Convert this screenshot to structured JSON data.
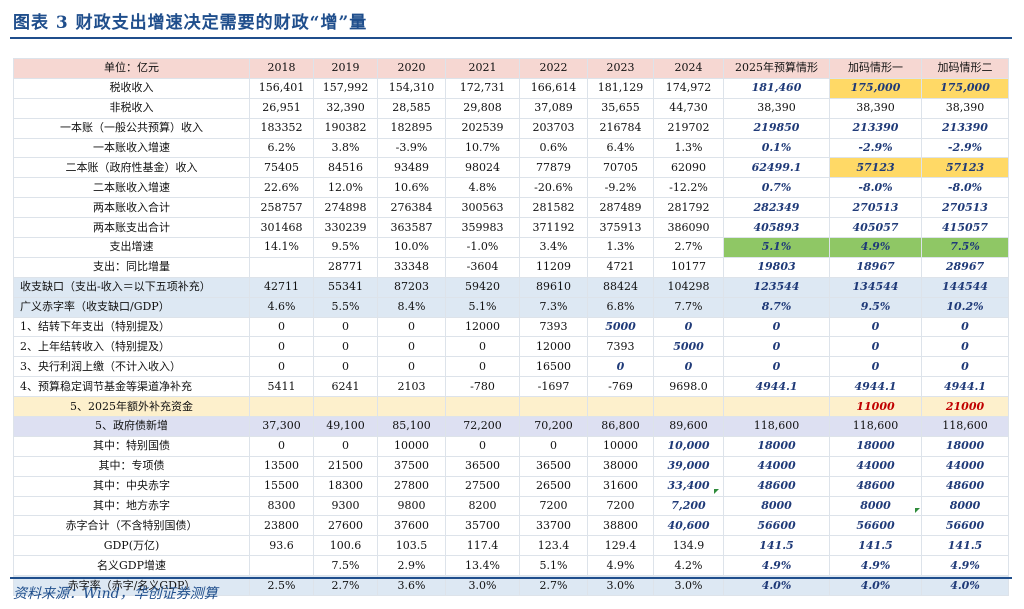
{
  "title": "图表 3   财政支出增速决定需要的财政“增”量",
  "source": "资料来源：Wind，华创证券测算",
  "table": {
    "headers": [
      "单位：亿元",
      "2018",
      "2019",
      "2020",
      "2021",
      "2022",
      "2023",
      "2024",
      "2025年预算情形",
      "加码情形一",
      "加码情形二"
    ],
    "rows": [
      {
        "label": "税收收入",
        "cells": [
          "156,401",
          "157,992",
          "154,310",
          "172,731",
          "166,614",
          "181,129",
          "174,972",
          "181,460",
          "175,000",
          "175,000"
        ]
      },
      {
        "label": "非税收入",
        "cells": [
          "26,951",
          "32,390",
          "28,585",
          "29,808",
          "37,089",
          "35,655",
          "44,730",
          "38,390",
          "38,390",
          "38,390"
        ]
      },
      {
        "label": "一本账（一般公共预算）收入",
        "cells": [
          "183352",
          "190382",
          "182895",
          "202539",
          "203703",
          "216784",
          "219702",
          "219850",
          "213390",
          "213390"
        ]
      },
      {
        "label": "一本账收入增速",
        "cells": [
          "6.2%",
          "3.8%",
          "-3.9%",
          "10.7%",
          "0.6%",
          "6.4%",
          "1.3%",
          "0.1%",
          "-2.9%",
          "-2.9%"
        ]
      },
      {
        "label": "二本账（政府性基金）收入",
        "cells": [
          "75405",
          "84516",
          "93489",
          "98024",
          "77879",
          "70705",
          "62090",
          "62499.1",
          "57123",
          "57123"
        ]
      },
      {
        "label": "二本账收入增速",
        "cells": [
          "22.6%",
          "12.0%",
          "10.6%",
          "4.8%",
          "-20.6%",
          "-9.2%",
          "-12.2%",
          "0.7%",
          "-8.0%",
          "-8.0%"
        ]
      },
      {
        "label": "两本账收入合计",
        "cells": [
          "258757",
          "274898",
          "276384",
          "300563",
          "281582",
          "287489",
          "281792",
          "282349",
          "270513",
          "270513"
        ]
      },
      {
        "label": "两本账支出合计",
        "cells": [
          "301468",
          "330239",
          "363587",
          "359983",
          "371192",
          "375913",
          "386090",
          "405893",
          "405057",
          "415057"
        ]
      },
      {
        "label": "支出增速",
        "cells": [
          "14.1%",
          "9.5%",
          "10.0%",
          "-1.0%",
          "3.4%",
          "1.3%",
          "2.7%",
          "5.1%",
          "4.9%",
          "7.5%"
        ]
      },
      {
        "label": "支出：同比增量",
        "cells": [
          "",
          "28771",
          "33348",
          "-3604",
          "11209",
          "4721",
          "10177",
          "19803",
          "18967",
          "28967"
        ]
      },
      {
        "label": "收支缺口（支出-收入＝以下五项补充）",
        "cells": [
          "42711",
          "55341",
          "87203",
          "59420",
          "89610",
          "88424",
          "104298",
          "123544",
          "134544",
          "144544"
        ]
      },
      {
        "label": "广义赤字率（收支缺口/GDP）",
        "cells": [
          "4.6%",
          "5.5%",
          "8.4%",
          "5.1%",
          "7.3%",
          "6.8%",
          "7.7%",
          "8.7%",
          "9.5%",
          "10.2%"
        ]
      },
      {
        "label": "1、结转下年支出（特别提及）",
        "cells": [
          "0",
          "0",
          "0",
          "12000",
          "7393",
          "5000",
          "0",
          "0",
          "0",
          "0"
        ]
      },
      {
        "label": "2、上年结转收入（特别提及）",
        "cells": [
          "0",
          "0",
          "0",
          "0",
          "12000",
          "7393",
          "5000",
          "0",
          "0",
          "0"
        ]
      },
      {
        "label": "3、央行利润上缴（不计入收入）",
        "cells": [
          "0",
          "0",
          "0",
          "0",
          "16500",
          "0",
          "0",
          "0",
          "0",
          "0"
        ]
      },
      {
        "label": "4、预算稳定调节基金等渠道净补充",
        "cells": [
          "5411",
          "6241",
          "2103",
          "-780",
          "-1697",
          "-769",
          "9698.0",
          "4944.1",
          "4944.1",
          "4944.1"
        ]
      },
      {
        "label": "5、2025年额外补充资金",
        "cells": [
          "",
          "",
          "",
          "",
          "",
          "",
          "",
          "",
          "11000",
          "21000"
        ]
      },
      {
        "label": "5、政府债新增",
        "cells": [
          "37,300",
          "49,100",
          "85,100",
          "72,200",
          "70,200",
          "86,800",
          "89,600",
          "118,600",
          "118,600",
          "118,600"
        ]
      },
      {
        "label": "其中：特别国债",
        "cells": [
          "0",
          "0",
          "10000",
          "0",
          "0",
          "10000",
          "10,000",
          "18000",
          "18000",
          "18000"
        ]
      },
      {
        "label": "其中：专项债",
        "cells": [
          "13500",
          "21500",
          "37500",
          "36500",
          "36500",
          "38000",
          "39,000",
          "44000",
          "44000",
          "44000"
        ]
      },
      {
        "label": "其中：中央赤字",
        "cells": [
          "15500",
          "18300",
          "27800",
          "27500",
          "26500",
          "31600",
          "33,400",
          "48600",
          "48600",
          "48600"
        ]
      },
      {
        "label": "其中：地方赤字",
        "cells": [
          "8300",
          "9300",
          "9800",
          "8200",
          "7200",
          "7200",
          "7,200",
          "8000",
          "8000",
          "8000"
        ]
      },
      {
        "label": "赤字合计（不含特别国债）",
        "cells": [
          "23800",
          "27600",
          "37600",
          "35700",
          "33700",
          "38800",
          "40,600",
          "56600",
          "56600",
          "56600"
        ]
      },
      {
        "label": "GDP(万亿)",
        "cells": [
          "93.6",
          "100.6",
          "103.5",
          "117.4",
          "123.4",
          "129.4",
          "134.9",
          "141.5",
          "141.5",
          "141.5"
        ]
      },
      {
        "label": "名义GDP增速",
        "cells": [
          "",
          "7.5%",
          "2.9%",
          "13.4%",
          "5.1%",
          "4.9%",
          "4.2%",
          "4.9%",
          "4.9%",
          "4.9%"
        ]
      },
      {
        "label": "赤字率（赤字/名义GDP）",
        "cells": [
          "2.5%",
          "2.7%",
          "3.6%",
          "3.0%",
          "2.7%",
          "3.0%",
          "3.0%",
          "4.0%",
          "4.0%",
          "4.0%"
        ]
      }
    ]
  },
  "colors": {
    "title": "#1f4e8c",
    "header_bg": "#f6d7d2",
    "blue_bg": "#dde8f3",
    "yellow_bg": "#fdf0cc",
    "purple_bg": "#dde0f2",
    "highlight_yellow": "#ffd966",
    "highlight_green": "#8fc765",
    "projection_text": "#1f3a78",
    "red_text": "#c00000"
  }
}
